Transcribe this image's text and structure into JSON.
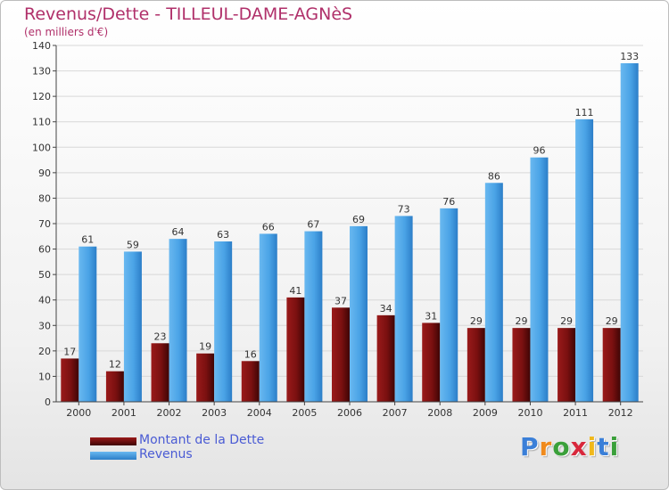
{
  "chart_data": {
    "type": "bar",
    "title": "Revenus/Dette - TILLEUL-DAME-AGNèS",
    "subtitle": "(en milliers d'€)",
    "xlabel": "",
    "ylabel": "",
    "ylim": [
      0,
      140
    ],
    "yticks": [
      0,
      10,
      20,
      30,
      40,
      50,
      60,
      70,
      80,
      90,
      100,
      110,
      120,
      130,
      140
    ],
    "grid": true,
    "legend_position": "bottom-left",
    "categories": [
      "2000",
      "2001",
      "2002",
      "2003",
      "2004",
      "2005",
      "2006",
      "2007",
      "2008",
      "2009",
      "2010",
      "2011",
      "2012"
    ],
    "series": [
      {
        "name": "Montant de la Dette",
        "color": "#7a1010",
        "values": [
          17,
          12,
          23,
          19,
          16,
          41,
          37,
          34,
          31,
          29,
          29,
          29,
          29
        ]
      },
      {
        "name": "Revenus",
        "color": "#4aa3e6",
        "values": [
          61,
          59,
          64,
          63,
          66,
          67,
          69,
          73,
          76,
          86,
          96,
          111,
          133
        ]
      }
    ]
  },
  "logo": {
    "letters": [
      "P",
      "r",
      "o",
      "x",
      "i",
      "t",
      "i"
    ],
    "colors": [
      "#3a7fd8",
      "#f08a1c",
      "#3aa03a",
      "#d8283c",
      "#f0b81c",
      "#3a7fd8",
      "#3aa03a"
    ]
  }
}
